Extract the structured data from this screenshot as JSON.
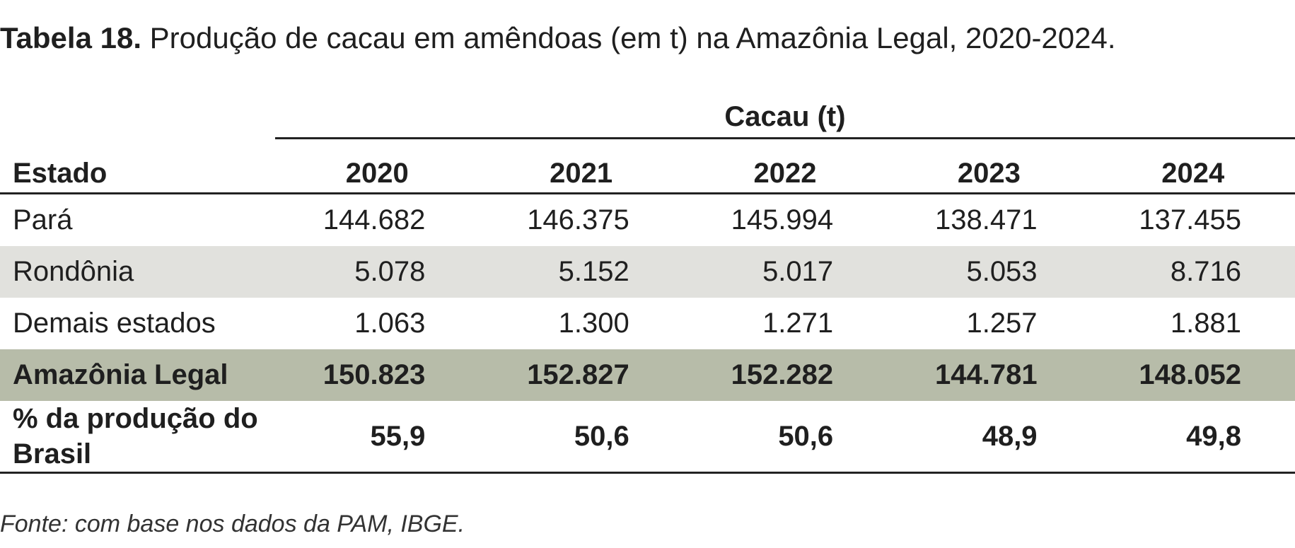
{
  "caption": {
    "label": "Tabela 18.",
    "text": "Produção de cacau em amêndoas (em t) na Amazônia Legal, 2020-2024."
  },
  "table": {
    "group_header": "Cacau (t)",
    "state_header": "Estado",
    "years": [
      "2020",
      "2021",
      "2022",
      "2023",
      "2024"
    ],
    "rows": [
      {
        "state": "Pará",
        "values": [
          "144.682",
          "146.375",
          "145.994",
          "138.471",
          "137.455"
        ]
      },
      {
        "state": "Rondônia",
        "values": [
          "5.078",
          "5.152",
          "5.017",
          "5.053",
          "8.716"
        ]
      },
      {
        "state": "Demais estados",
        "values": [
          "1.063",
          "1.300",
          "1.271",
          "1.257",
          "1.881"
        ]
      }
    ],
    "total": {
      "state": "Amazônia Legal",
      "values": [
        "150.823",
        "152.827",
        "152.282",
        "144.781",
        "148.052"
      ]
    },
    "share": {
      "state": "% da produção do Brasil",
      "values": [
        "55,9",
        "50,6",
        "50,6",
        "48,9",
        "49,8"
      ]
    }
  },
  "source": "Fonte: com base nos dados da PAM, IBGE.",
  "colors": {
    "shaded_row": "#e1e1dd",
    "total_row": "#b7bca9",
    "rule": "#222222"
  }
}
